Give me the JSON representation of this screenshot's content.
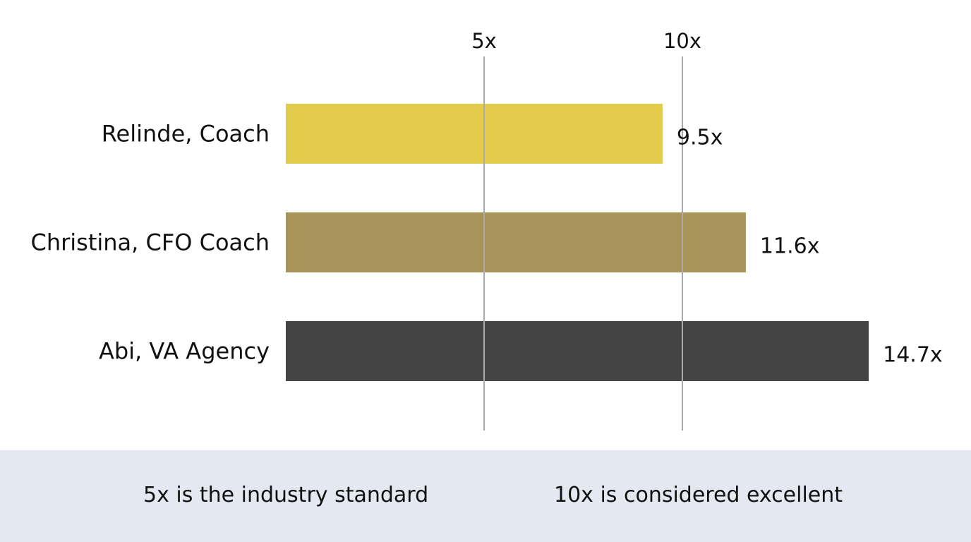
{
  "chart_data": {
    "type": "bar",
    "orientation": "horizontal",
    "categories": [
      "Relinde, Coach",
      "Christina, CFO Coach",
      "Abi, VA Agency"
    ],
    "values": [
      9.5,
      11.6,
      14.7
    ],
    "value_labels": [
      "9.5x",
      "11.6x",
      "14.7x"
    ],
    "colors": [
      "#e3cb4b",
      "#a89458",
      "#444444"
    ],
    "reference_lines": [
      {
        "value": 5,
        "label": "5x"
      },
      {
        "value": 10,
        "label": "10x"
      }
    ],
    "grid": false,
    "legend": "none"
  },
  "footer": {
    "note_1": "5x is the industry standard",
    "note_2": "10x is considered excellent",
    "background": "#e4e9f1"
  }
}
